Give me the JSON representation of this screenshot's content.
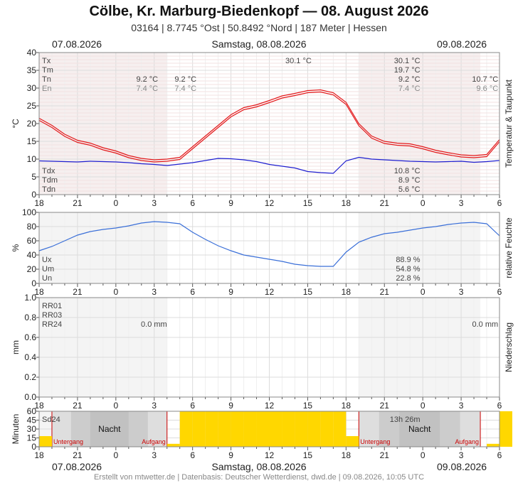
{
  "header": {
    "title": "Cölbe, Kr. Marburg-Biedenkopf  —  08. August 2026",
    "subtitle": "03164  |  8.7745 °Ost  |  50.8492 °Nord  |  187 Meter  |  Hessen"
  },
  "dates": {
    "prev": "07.08.2026",
    "current": "Samstag, 08.08.2026",
    "next": "09.08.2026"
  },
  "footer": "Erstellt von mtwetter.de | Datenbasis: Deutscher Wetterdienst, dwd.de | 09.08.2026, 10:05 UTC",
  "colors": {
    "temp": "#e31a1c",
    "dew": "#1f1fd0",
    "humidity": "#3a6fd8",
    "sun": "#ffd700",
    "night": "#c8c8c8",
    "sunline": "#cc0000"
  },
  "chart_data": [
    {
      "id": "temperature",
      "type": "line",
      "ylabel": "°C",
      "side_label": "Temperatur & Taupunkt",
      "ylim": [
        0,
        40
      ],
      "yticks": [
        "0",
        "5",
        "10",
        "15",
        "20",
        "25",
        "30",
        "35",
        "40"
      ],
      "xticks": [
        "18",
        "21",
        "0",
        "3",
        "6",
        "9",
        "12",
        "15",
        "18",
        "21",
        "0",
        "3",
        "6"
      ],
      "x_range_hours": [
        -6,
        30
      ],
      "series": [
        {
          "name": "Temperatur",
          "x": [
            -6,
            -5,
            -4,
            -3,
            -2,
            -1,
            0,
            1,
            2,
            3,
            4,
            5,
            6,
            7,
            8,
            9,
            10,
            11,
            12,
            13,
            14,
            15,
            16,
            17,
            18,
            19,
            20,
            21,
            22,
            23,
            24,
            25,
            26,
            27,
            28,
            29,
            30
          ],
          "values": [
            21.5,
            19.5,
            17,
            15.3,
            14.5,
            13.2,
            12.3,
            11,
            10.2,
            9.8,
            10,
            10.5,
            13.5,
            16.5,
            19.5,
            22.5,
            24.5,
            25.3,
            26.5,
            27.8,
            28.5,
            29.3,
            29.5,
            28.7,
            26,
            20,
            16.5,
            15,
            14.5,
            14.3,
            13.5,
            12.5,
            11.8,
            11.2,
            11,
            11.3,
            15.5
          ]
        },
        {
          "name": "Taupunkt",
          "x": [
            -6,
            -5,
            -4,
            -3,
            -2,
            -1,
            0,
            1,
            2,
            3,
            4,
            5,
            6,
            7,
            8,
            9,
            10,
            11,
            12,
            13,
            14,
            15,
            16,
            17,
            18,
            19,
            20,
            21,
            22,
            23,
            24,
            25,
            26,
            27,
            28,
            29,
            30
          ],
          "values": [
            9.5,
            9.4,
            9.3,
            9.2,
            9.4,
            9.3,
            9.2,
            9,
            8.7,
            8.5,
            8.2,
            8.6,
            9,
            9.6,
            10.2,
            10.1,
            9.8,
            9.3,
            8.5,
            8,
            7.5,
            6.5,
            6.2,
            6,
            9.5,
            10.5,
            10,
            9.8,
            9.6,
            9.4,
            9.3,
            9.2,
            9.3,
            9.4,
            9.1,
            9.3,
            9.6
          ]
        }
      ],
      "labels_left": [
        "Tx",
        "Tm",
        "Tn",
        "En"
      ],
      "labels_bottom_left": [
        "Tdx",
        "Tdm",
        "Tdn"
      ],
      "annotations": [
        {
          "row": 2,
          "x": 3.3,
          "text": "9.2 °C"
        },
        {
          "row": 3,
          "x": 3.3,
          "text": "7.4 °C"
        },
        {
          "row": 2,
          "x": 6.3,
          "text": "9.2 °C"
        },
        {
          "row": 3,
          "x": 6.3,
          "text": "7.4 °C"
        },
        {
          "row": 0,
          "x": 15.3,
          "text": "30.1 °C"
        },
        {
          "row": 0,
          "x": 23.8,
          "text": "30.1 °C"
        },
        {
          "row": 1,
          "x": 23.8,
          "text": "19.7 °C"
        },
        {
          "row": 2,
          "x": 23.8,
          "text": "9.2 °C"
        },
        {
          "row": 3,
          "x": 23.8,
          "text": "7.4 °C"
        },
        {
          "row": 2,
          "x": 29.9,
          "text": "10.7 °C"
        },
        {
          "row": 3,
          "x": 29.9,
          "text": "9.6 °C"
        }
      ],
      "bottom_values": [
        "10.8 °C",
        "8.9 °C",
        "5.6 °C"
      ]
    },
    {
      "id": "humidity",
      "type": "line",
      "ylabel": "%",
      "side_label": "relative Feuchte",
      "ylim": [
        0,
        100
      ],
      "yticks": [
        "0",
        "20",
        "40",
        "60",
        "80",
        "100"
      ],
      "xticks": [
        "18",
        "21",
        "0",
        "3",
        "6",
        "9",
        "12",
        "15",
        "18",
        "21",
        "0",
        "3",
        "6"
      ],
      "series": [
        {
          "name": "relative Feuchte",
          "x": [
            -6,
            -5,
            -4,
            -3,
            -2,
            -1,
            0,
            1,
            2,
            3,
            4,
            5,
            6,
            7,
            8,
            9,
            10,
            11,
            12,
            13,
            14,
            15,
            16,
            17,
            18,
            19,
            20,
            21,
            22,
            23,
            24,
            25,
            26,
            27,
            28,
            29,
            30
          ],
          "values": [
            46,
            52,
            60,
            68,
            73,
            76,
            78,
            81,
            85,
            87,
            86,
            84,
            72,
            62,
            53,
            46,
            40,
            37,
            34,
            31,
            27,
            25,
            24,
            24,
            44,
            58,
            65,
            70,
            72,
            75,
            78,
            80,
            83,
            85,
            86,
            84,
            67
          ]
        }
      ],
      "labels": [
        "Ux",
        "Um",
        "Un"
      ],
      "values": [
        "88.9 %",
        "54.8 %",
        "22.8 %"
      ]
    },
    {
      "id": "precipitation",
      "type": "bar",
      "ylabel": "mm",
      "side_label": "Niederschlag",
      "ylim": [
        0,
        1
      ],
      "yticks": [
        "0.0",
        "0.2",
        "0.4",
        "0.6",
        "0.8",
        "1.0"
      ],
      "xticks": [
        "18",
        "21",
        "0",
        "3",
        "6",
        "9",
        "12",
        "15",
        "18",
        "21",
        "0",
        "3",
        "6"
      ],
      "labels": [
        "RR01",
        "RR03",
        "RR24"
      ],
      "annotations": [
        {
          "x": 4.0,
          "text": "0.0 mm"
        },
        {
          "x": 29.9,
          "text": "0.0 mm"
        }
      ]
    },
    {
      "id": "sunshine",
      "type": "bar",
      "ylabel": "Minuten",
      "side_label": "Sonne",
      "ylim": [
        0,
        60
      ],
      "yticks": [
        "0",
        "15",
        "30",
        "45",
        "60"
      ],
      "xticks": [
        "18",
        "21",
        "0",
        "3",
        "6",
        "9",
        "12",
        "15",
        "18",
        "21",
        "0",
        "3",
        "6"
      ],
      "x": [
        -6,
        -5,
        0,
        3,
        4,
        5,
        6,
        7,
        8,
        9,
        10,
        11,
        12,
        13,
        14,
        15,
        16,
        17,
        18,
        19,
        29,
        30
      ],
      "values": [
        18,
        0,
        0,
        0,
        5,
        60,
        60,
        60,
        60,
        60,
        60,
        60,
        60,
        60,
        60,
        60,
        60,
        60,
        18,
        0,
        5,
        60
      ],
      "label": "Sd24",
      "total": "13h 26m",
      "night_label": "Nacht",
      "sunset_label": "Untergang",
      "sunrise_label": "Aufgang",
      "sunset_hours": [
        -5,
        19
      ],
      "sunrise_hours": [
        4,
        28.5
      ]
    }
  ]
}
